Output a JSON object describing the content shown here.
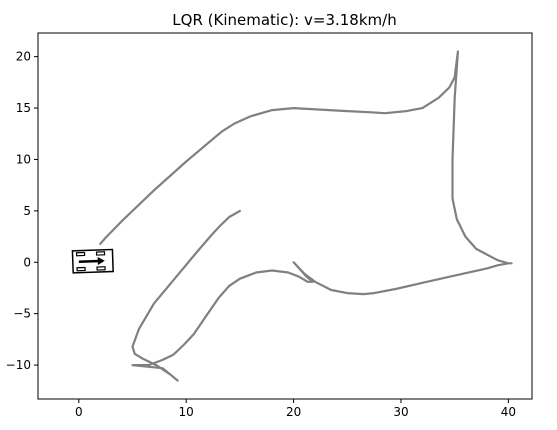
{
  "chart_data": {
    "type": "line",
    "title": "LQR (Kinematic): v=3.18km/h",
    "xlabel": "",
    "ylabel": "",
    "xlim": [
      -3.8,
      42.2
    ],
    "ylim": [
      -13.3,
      22.3
    ],
    "xticks": [
      0,
      10,
      20,
      30,
      40
    ],
    "yticks": [
      -10,
      -5,
      0,
      5,
      10,
      15,
      20
    ],
    "xtick_labels": [
      "0",
      "10",
      "20",
      "30",
      "40"
    ],
    "ytick_labels": [
      "−10",
      "−5",
      "0",
      "5",
      "10",
      "15",
      "20"
    ],
    "grid": false,
    "legend": "none",
    "series": [
      {
        "color": "#808080",
        "x": [
          15.0,
          14.0,
          13.2,
          12.4,
          11.0,
          9.0,
          7.0,
          5.6,
          5.0,
          5.2,
          6.0,
          7.2,
          8.5,
          9.2,
          7.8,
          5.0,
          6.5,
          7.8,
          8.8,
          9.8,
          10.7,
          12.0,
          13.0,
          14.0,
          15.0,
          16.5,
          18.0,
          19.5,
          20.5,
          21.3,
          21.8,
          21.2,
          20.7,
          20.0,
          21.0,
          22.0,
          23.5,
          25.0,
          26.5,
          27.5,
          29.5,
          32.0,
          35.0,
          38.0,
          39.0,
          40.0,
          40.3,
          40.0,
          39.0,
          37.0,
          36.0,
          35.2,
          34.8,
          34.8,
          35.0,
          35.3,
          35.0,
          34.5,
          33.5,
          32.0,
          30.5,
          28.5,
          27.0,
          25.0,
          20.0,
          18.0,
          16.0,
          14.5,
          13.3,
          10.0,
          7.0,
          4.0,
          2.5,
          2.0
        ],
        "y": [
          5.0,
          4.4,
          3.6,
          2.7,
          1.0,
          -1.5,
          -4.0,
          -6.5,
          -8.2,
          -8.9,
          -9.4,
          -10.0,
          -10.9,
          -11.5,
          -10.3,
          -10.0,
          -10.0,
          -9.5,
          -9.0,
          -8.0,
          -7.0,
          -5.0,
          -3.5,
          -2.3,
          -1.6,
          -1.0,
          -0.8,
          -1.0,
          -1.4,
          -1.9,
          -1.9,
          -1.4,
          -0.8,
          0.0,
          -1.1,
          -1.9,
          -2.7,
          -3.0,
          -3.1,
          -3.0,
          -2.6,
          -2.0,
          -1.3,
          -0.6,
          -0.3,
          -0.1,
          -0.1,
          -0.1,
          0.2,
          1.3,
          2.5,
          4.2,
          6.2,
          10.0,
          16.0,
          20.5,
          18.0,
          17.0,
          16.0,
          15.0,
          14.7,
          14.5,
          14.6,
          14.7,
          15.0,
          14.8,
          14.2,
          13.5,
          12.7,
          9.8,
          7.0,
          4.0,
          2.4,
          1.8
        ]
      }
    ],
    "vehicle": {
      "x": 1.3,
      "y": 0.1,
      "heading_deg": 2
    }
  }
}
